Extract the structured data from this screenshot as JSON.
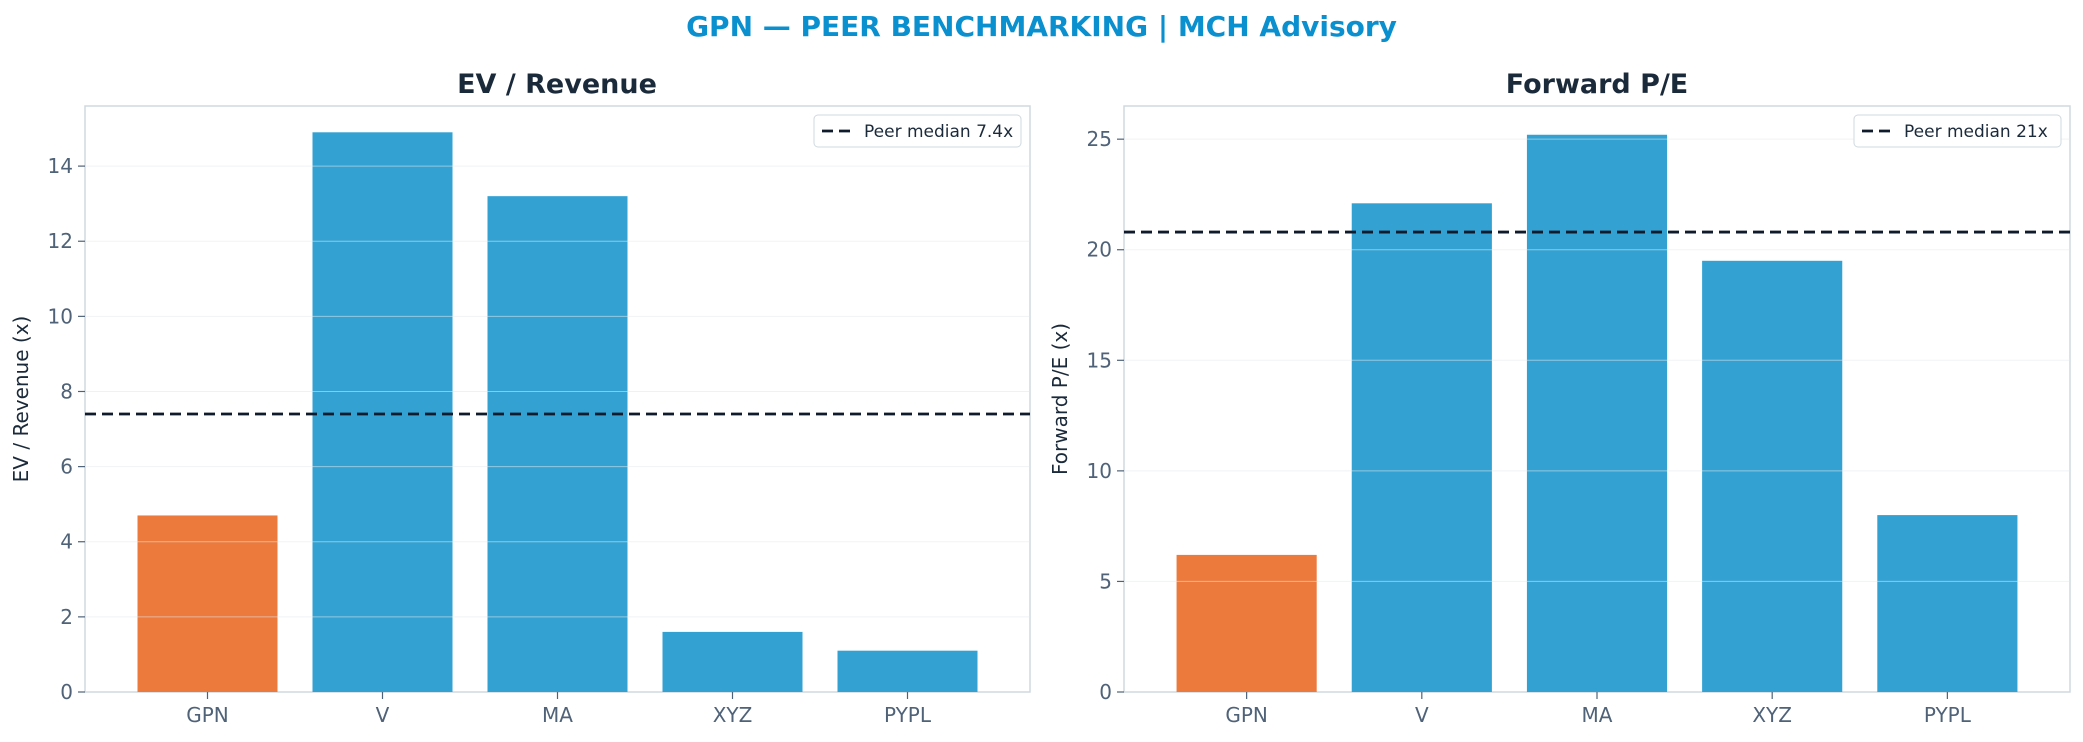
{
  "page_title": "GPN — PEER BENCHMARKING | MCH Advisory",
  "colors": {
    "highlight": "#ec7a3c",
    "peer": "#33a2d3",
    "median_line": "#0f1b2d",
    "title": "#0a8fcf"
  },
  "chart_data": [
    {
      "type": "bar",
      "title": "EV / Revenue",
      "xlabel": "",
      "ylabel": "EV / Revenue (x)",
      "categories": [
        "GPN",
        "V",
        "MA",
        "XYZ",
        "PYPL"
      ],
      "values": [
        4.7,
        14.9,
        13.2,
        1.6,
        1.1
      ],
      "highlight": "GPN",
      "ylim": [
        0,
        15.6
      ],
      "yticks": [
        0,
        2,
        4,
        6,
        8,
        10,
        12,
        14
      ],
      "reference_line": {
        "value": 7.4,
        "label": "Peer median 7.4x",
        "style": "dashed"
      },
      "grid": true,
      "legend": "top-right"
    },
    {
      "type": "bar",
      "title": "Forward P/E",
      "xlabel": "",
      "ylabel": "Forward P/E (x)",
      "categories": [
        "GPN",
        "V",
        "MA",
        "XYZ",
        "PYPL"
      ],
      "values": [
        6.2,
        22.1,
        25.2,
        19.5,
        8.0
      ],
      "highlight": "GPN",
      "ylim": [
        0,
        26.5
      ],
      "yticks": [
        0,
        5,
        10,
        15,
        20,
        25
      ],
      "reference_line": {
        "value": 20.8,
        "label": "Peer median 21x",
        "style": "dashed"
      },
      "grid": true,
      "legend": "top-right"
    }
  ]
}
